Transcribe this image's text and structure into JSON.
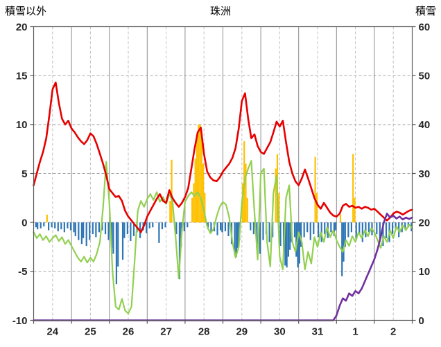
{
  "chart_data": {
    "type": "composite",
    "title": "珠洲",
    "x_axis": {
      "labels": [
        "24",
        "25",
        "26",
        "27",
        "28",
        "29",
        "30",
        "31",
        "1",
        "2"
      ],
      "hours_per_division": 24,
      "total_hours": 240
    },
    "left_axis": {
      "title": "積雪以外",
      "min": -10,
      "max": 20,
      "ticks": [
        20,
        15,
        10,
        5,
        0,
        -5,
        -10
      ]
    },
    "right_axis": {
      "title": "積雪",
      "min": 0,
      "max": 60,
      "ticks": [
        60,
        50,
        40,
        30,
        20,
        10,
        0
      ]
    },
    "colors": {
      "red_line": "#e60000",
      "green_line": "#92d050",
      "purple_line": "#7030a0",
      "bar_positive": "#ffc000",
      "bar_negative": "#2e75b6",
      "grid_dashed": "#a6a6a6",
      "grid_day": "#8c8c8c",
      "grid_halfday": "#c0c0c0",
      "border": "#595959",
      "tick_text": "#262626"
    },
    "lines": {
      "red_series": {
        "axis": "left",
        "step_hours": 2,
        "values": [
          3.8,
          5.0,
          6.2,
          7.2,
          8.6,
          11.0,
          13.6,
          14.3,
          12.2,
          10.6,
          10.0,
          10.4,
          9.6,
          9.2,
          8.7,
          8.3,
          8.0,
          8.4,
          9.1,
          8.8,
          8.0,
          7.0,
          6.0,
          4.8,
          3.4,
          3.0,
          2.6,
          2.7,
          2.2,
          1.2,
          0.6,
          0.2,
          -0.2,
          -0.6,
          -1.0,
          -0.3,
          0.6,
          1.2,
          1.8,
          2.4,
          2.9,
          2.2,
          2.0,
          3.3,
          2.5,
          2.0,
          1.6,
          2.0,
          2.6,
          3.5,
          5.5,
          7.5,
          9.2,
          9.7,
          7.0,
          5.2,
          4.6,
          4.3,
          4.2,
          4.6,
          5.2,
          5.6,
          6.0,
          6.6,
          7.6,
          9.6,
          12.4,
          13.2,
          10.6,
          8.6,
          9.0,
          7.8,
          7.2,
          7.0,
          7.6,
          8.2,
          9.2,
          10.3,
          9.8,
          10.4,
          8.2,
          6.2,
          5.0,
          4.2,
          3.8,
          4.5,
          5.4,
          4.5,
          3.5,
          2.5,
          1.8,
          1.4,
          2.0,
          1.5,
          1.0,
          0.7,
          0.6,
          0.9,
          1.7,
          1.9,
          1.6,
          1.7,
          1.5,
          1.6,
          1.4,
          1.6,
          1.5,
          1.3,
          1.4,
          1.1,
          0.8,
          0.5,
          0.2,
          0.5,
          0.9,
          1.1,
          1.0,
          0.8,
          1.0,
          1.2,
          1.3
        ]
      },
      "green_series": {
        "axis": "left",
        "step_hours": 2,
        "values": [
          -1.0,
          -1.6,
          -1.2,
          -1.8,
          -1.4,
          -2.0,
          -1.6,
          -1.3,
          -1.9,
          -1.5,
          -2.2,
          -1.8,
          -2.4,
          -3.0,
          -3.6,
          -4.0,
          -3.5,
          -4.1,
          -3.6,
          -4.0,
          -3.2,
          -2.0,
          1.5,
          6.2,
          2.0,
          -5.0,
          -8.6,
          -8.9,
          -7.8,
          -9.0,
          -9.3,
          -8.6,
          -4.0,
          1.2,
          2.2,
          1.6,
          2.4,
          2.9,
          2.3,
          3.1,
          2.1,
          2.6,
          1.9,
          2.9,
          2.2,
          -1.5,
          -5.7,
          -0.8,
          2.1,
          2.7,
          3.1,
          2.7,
          3.1,
          2.5,
          1.2,
          -0.4,
          -1.1,
          -0.7,
          0.6,
          1.6,
          2.1,
          1.8,
          0.5,
          -2.0,
          -3.6,
          -2.5,
          2.0,
          4.5,
          5.5,
          6.3,
          1.0,
          -3.8,
          5.0,
          5.5,
          -2.0,
          -4.5,
          3.0,
          4.8,
          -3.5,
          -4.8,
          2.5,
          3.8,
          -2.0,
          -3.0,
          -1.0,
          -2.0,
          -4.8,
          -3.0,
          -4.2,
          -1.5,
          -2.5,
          -1.0,
          -2.0,
          -0.5,
          -1.5,
          -0.8,
          -1.8,
          -2.5,
          -3.0,
          -1.8,
          -2.4,
          -1.4,
          -2.0,
          -1.0,
          -1.6,
          -0.8,
          -1.4,
          -0.6,
          -1.0,
          -1.8,
          -2.6,
          -1.4,
          -2.0,
          -0.8,
          -1.6,
          -0.4,
          -1.0,
          -0.3,
          -0.8,
          -0.2,
          -0.6
        ]
      },
      "snow_depth": {
        "axis": "right",
        "points_cm": [
          [
            0,
            0
          ],
          [
            190,
            0
          ],
          [
            192,
            1
          ],
          [
            194,
            3
          ],
          [
            196,
            4.5
          ],
          [
            198,
            4
          ],
          [
            200,
            5.5
          ],
          [
            202,
            5
          ],
          [
            204,
            6
          ],
          [
            206,
            5.5
          ],
          [
            208,
            6.5
          ],
          [
            210,
            8
          ],
          [
            212,
            9.5
          ],
          [
            214,
            11
          ],
          [
            216,
            12.5
          ],
          [
            218,
            14.5
          ],
          [
            220,
            17
          ],
          [
            222,
            20
          ],
          [
            224,
            21.8
          ],
          [
            226,
            21
          ],
          [
            228,
            21.4
          ],
          [
            230,
            20.8
          ],
          [
            232,
            21.2
          ],
          [
            234,
            20.6
          ],
          [
            236,
            21
          ],
          [
            238,
            20.7
          ],
          [
            240,
            21
          ]
        ]
      }
    },
    "bars": {
      "axis": "left",
      "data": [
        [
          1,
          -0.5
        ],
        [
          2,
          -0.7
        ],
        [
          4,
          -0.6
        ],
        [
          6,
          -0.4
        ],
        [
          8,
          0.8
        ],
        [
          9,
          -0.8
        ],
        [
          11,
          -0.5
        ],
        [
          13,
          -0.6
        ],
        [
          15,
          -0.9
        ],
        [
          17,
          -0.7
        ],
        [
          19,
          -1.0
        ],
        [
          21,
          -0.6
        ],
        [
          23,
          -0.8
        ],
        [
          25,
          -1.0
        ],
        [
          26,
          -1.4
        ],
        [
          28,
          -1.8
        ],
        [
          30,
          -2.2
        ],
        [
          31,
          -1.6
        ],
        [
          33,
          -2.4
        ],
        [
          35,
          -1.8
        ],
        [
          37,
          -1.2
        ],
        [
          39,
          -1.5
        ],
        [
          41,
          -1.0
        ],
        [
          43,
          -0.8
        ],
        [
          45,
          -1.2
        ],
        [
          47,
          -1.8
        ],
        [
          49,
          -2.6
        ],
        [
          50,
          -3.2
        ],
        [
          52,
          -6.3
        ],
        [
          53,
          -4.5
        ],
        [
          56,
          -3.8
        ],
        [
          57,
          -1.6
        ],
        [
          59,
          -1.2
        ],
        [
          61,
          -1.9
        ],
        [
          63,
          -1.4
        ],
        [
          65,
          -1.0
        ],
        [
          67,
          -1.6
        ],
        [
          69,
          -0.8
        ],
        [
          71,
          -1.1
        ],
        [
          73,
          -0.6
        ],
        [
          75,
          -0.5
        ],
        [
          79,
          -2.1
        ],
        [
          81,
          -0.7
        ],
        [
          83,
          -0.5
        ],
        [
          86,
          2.2
        ],
        [
          87,
          6.4
        ],
        [
          90,
          -1.2
        ],
        [
          92,
          -5.8
        ],
        [
          93,
          -2.5
        ],
        [
          95,
          -0.9
        ],
        [
          97,
          -0.5
        ],
        [
          100,
          2.5
        ],
        [
          101,
          4.0
        ],
        [
          102,
          6.5
        ],
        [
          103,
          9.0
        ],
        [
          104,
          10.0
        ],
        [
          105,
          10.0
        ],
        [
          106,
          9.3
        ],
        [
          107,
          6.0
        ],
        [
          108,
          3.0
        ],
        [
          110,
          -0.7
        ],
        [
          112,
          -1.1
        ],
        [
          114,
          -0.9
        ],
        [
          116,
          -1.3
        ],
        [
          118,
          -0.8
        ],
        [
          119,
          -1.0
        ],
        [
          121,
          -0.9
        ],
        [
          123,
          -1.4
        ],
        [
          125,
          -2.2
        ],
        [
          127,
          -3.3
        ],
        [
          128,
          -3.5
        ],
        [
          129,
          -2.6
        ],
        [
          130,
          -1.8
        ],
        [
          132,
          4.0
        ],
        [
          133,
          8.3
        ],
        [
          134,
          6.0
        ],
        [
          135,
          2.5
        ],
        [
          137,
          -0.8
        ],
        [
          139,
          -1.2
        ],
        [
          141,
          -2.6
        ],
        [
          143,
          -3.2
        ],
        [
          145,
          -1.8
        ],
        [
          147,
          -1.2
        ],
        [
          149,
          -2.0
        ],
        [
          151,
          -1.5
        ],
        [
          153,
          5.5
        ],
        [
          154,
          7.0
        ],
        [
          155,
          3.0
        ],
        [
          156,
          -2.4
        ],
        [
          158,
          -3.0
        ],
        [
          159,
          -4.4
        ],
        [
          160,
          -4.6
        ],
        [
          161,
          -3.5
        ],
        [
          162,
          -2.8
        ],
        [
          163,
          -2.0
        ],
        [
          165,
          -1.5
        ],
        [
          166,
          -3.5
        ],
        [
          167,
          -4.6
        ],
        [
          168,
          -4.2
        ],
        [
          169,
          -2.5
        ],
        [
          171,
          -1.5
        ],
        [
          173,
          -1.0
        ],
        [
          175,
          -1.8
        ],
        [
          177,
          -1.2
        ],
        [
          178,
          6.7
        ],
        [
          179,
          3.0
        ],
        [
          180,
          -1.5
        ],
        [
          182,
          -2.0
        ],
        [
          184,
          -1.2
        ],
        [
          186,
          -1.6
        ],
        [
          188,
          -1.0
        ],
        [
          190,
          -1.4
        ],
        [
          191,
          -0.8
        ],
        [
          194,
          0.8
        ],
        [
          195,
          -5.5
        ],
        [
          196,
          -4.0
        ],
        [
          197,
          -2.5
        ],
        [
          199,
          -1.5
        ],
        [
          201,
          -1.0
        ],
        [
          202,
          7.0
        ],
        [
          203,
          2.5
        ],
        [
          204,
          -1.8
        ],
        [
          206,
          -1.2
        ],
        [
          208,
          -2.0
        ],
        [
          210,
          -1.5
        ],
        [
          212,
          -1.0
        ],
        [
          214,
          -1.3
        ],
        [
          217,
          -1.2
        ],
        [
          219,
          -1.8
        ],
        [
          221,
          -2.4
        ],
        [
          223,
          -1.6
        ],
        [
          225,
          -2.0
        ],
        [
          227,
          -1.2
        ],
        [
          229,
          -0.8
        ],
        [
          231,
          -1.5
        ],
        [
          233,
          -1.0
        ],
        [
          235,
          -0.7
        ],
        [
          237,
          -0.5
        ],
        [
          239,
          -0.9
        ]
      ]
    }
  }
}
